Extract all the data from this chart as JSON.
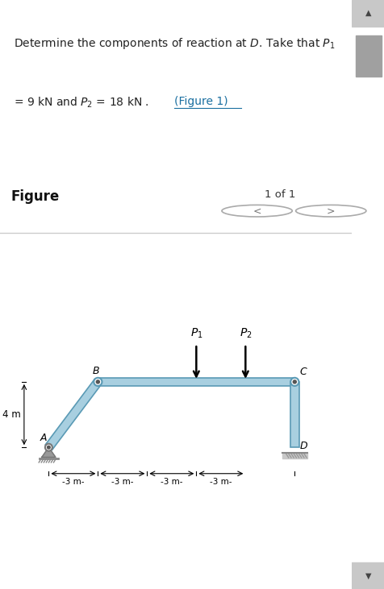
{
  "bg_color": "#ffffff",
  "header_bg": "#e8f4f8",
  "figure_label": "Figure",
  "page_label": "1 of 1",
  "struct_color": "#a8cfe0",
  "struct_edge_color": "#5a9ab5",
  "A": [
    0,
    0
  ],
  "B": [
    3,
    4
  ],
  "C": [
    15,
    4
  ],
  "D": [
    15,
    0
  ],
  "dim_3m_labels": [
    "-3 m-",
    "-3 m-",
    "-3 m-",
    "-3 m-"
  ],
  "dim_4m_label": "4 m",
  "P1_label": "$P_1$",
  "P2_label": "$P_2$",
  "arrow_color": "#000000",
  "scrollbar_color": "#d0d0d0",
  "scrollbar_thumb": "#a0a0a0"
}
